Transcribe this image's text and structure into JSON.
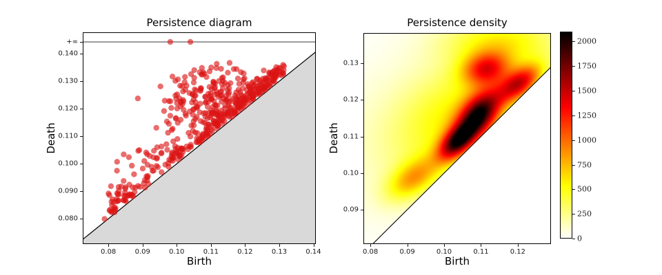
{
  "figure": {
    "background": "#ffffff"
  },
  "chart_data": [
    {
      "id": "persistence-diagram",
      "type": "scatter",
      "title": "Persistence diagram",
      "xlabel": "Birth",
      "ylabel": "Death",
      "xlim": [
        0.0725,
        0.1407
      ],
      "ylim": [
        0.0708,
        0.1478
      ],
      "x_ticks": [
        {
          "label": "0.08",
          "value": 0.08
        },
        {
          "label": "0.09",
          "value": 0.09
        },
        {
          "label": "0.10",
          "value": 0.1
        },
        {
          "label": "0.11",
          "value": 0.11
        },
        {
          "label": "0.12",
          "value": 0.12
        },
        {
          "label": "0.13",
          "value": 0.13
        },
        {
          "label": "0.14",
          "value": 0.14
        }
      ],
      "y_ticks": [
        {
          "label": "0.140",
          "value": 0.14
        },
        {
          "label": "0.130",
          "value": 0.13
        },
        {
          "label": "0.120",
          "value": 0.12
        },
        {
          "label": "0.110",
          "value": 0.11
        },
        {
          "label": "0.100",
          "value": 0.1
        },
        {
          "label": "0.090",
          "value": 0.09
        },
        {
          "label": "0.080",
          "value": 0.08
        }
      ],
      "infinity": {
        "label": "+∞",
        "value": 0.1443,
        "line_color": "#3a3a3a",
        "points_birth": [
          0.0981,
          0.104
        ]
      },
      "diagonal": {
        "line_color": "#000000",
        "fill_below_color": "#d9d9d9"
      },
      "point_style": {
        "color": "#dc1414",
        "alpha": 0.62,
        "radius": 4.2
      },
      "point_count_approx": 530,
      "seed": 42,
      "clusters": [
        {
          "kind": "band",
          "n": 230,
          "birth_lo": 0.0955,
          "birth_hi": 0.1315,
          "skew": 0.62,
          "gap_min": 0.0008,
          "gap_sigma": 0.0035
        },
        {
          "kind": "gauss",
          "n": 190,
          "cx": 0.1105,
          "cy": 0.1235,
          "sx": 0.0075,
          "sy": 0.0058,
          "min_gap": 0.0008,
          "death_max": 0.1375,
          "birth_max": 0.1315
        },
        {
          "kind": "uniform_gap",
          "n": 85,
          "birth_lo": 0.0785,
          "birth_hi": 0.102,
          "gap_min": 0.001,
          "gap_sigma": 0.008,
          "death_max": 0.128
        },
        {
          "kind": "uniform_gap",
          "n": 25,
          "birth_lo": 0.0785,
          "birth_hi": 0.092,
          "gap_min": 0.0005,
          "gap_sigma": 0.0018,
          "death_max": 0.12
        }
      ]
    },
    {
      "id": "persistence-density",
      "type": "heatmap",
      "title": "Persistence density",
      "xlabel": "Birth",
      "ylabel": "Death",
      "xlim": [
        0.0781,
        0.129
      ],
      "ylim": [
        0.0806,
        0.1383
      ],
      "x_ticks": [
        {
          "label": "0.08",
          "value": 0.08
        },
        {
          "label": "0.09",
          "value": 0.09
        },
        {
          "label": "0.10",
          "value": 0.1
        },
        {
          "label": "0.11",
          "value": 0.11
        },
        {
          "label": "0.12",
          "value": 0.12
        }
      ],
      "y_ticks": [
        {
          "label": "0.13",
          "value": 0.13
        },
        {
          "label": "0.12",
          "value": 0.12
        },
        {
          "label": "0.11",
          "value": 0.11
        },
        {
          "label": "0.10",
          "value": 0.1
        },
        {
          "label": "0.09",
          "value": 0.09
        }
      ],
      "colormap": "hot_r",
      "vmin": 0,
      "vmax": 2100,
      "diagonal": {
        "line_color": "#000000"
      },
      "density_gaussians": [
        {
          "cx": 0.1035,
          "cy": 0.1085,
          "sx": 0.0035,
          "sy": 0.0035,
          "rho": 0.55,
          "amp": 1500
        },
        {
          "cx": 0.1095,
          "cy": 0.116,
          "sx": 0.004,
          "sy": 0.0045,
          "rho": 0.45,
          "amp": 1600
        },
        {
          "cx": 0.1115,
          "cy": 0.1285,
          "sx": 0.0045,
          "sy": 0.0032,
          "rho": 0.15,
          "amp": 1050
        },
        {
          "cx": 0.1205,
          "cy": 0.1245,
          "sx": 0.0042,
          "sy": 0.0036,
          "rho": 0.55,
          "amp": 1250
        },
        {
          "cx": 0.0915,
          "cy": 0.0985,
          "sx": 0.0048,
          "sy": 0.004,
          "rho": 0.5,
          "amp": 680
        },
        {
          "cx": 0.104,
          "cy": 0.1155,
          "sx": 0.012,
          "sy": 0.0105,
          "rho": 0.35,
          "amp": 430
        },
        {
          "cx": 0.097,
          "cy": 0.112,
          "sx": 0.019,
          "sy": 0.016,
          "rho": 0.25,
          "amp": 150
        },
        {
          "cx": 0.116,
          "cy": 0.136,
          "sx": 0.011,
          "sy": 0.0045,
          "rho": 0.0,
          "amp": 480
        }
      ],
      "colorbar": {
        "ticks": [
          {
            "label": "2000",
            "value": 2000
          },
          {
            "label": "1750",
            "value": 1750
          },
          {
            "label": "1500",
            "value": 1500
          },
          {
            "label": "1250",
            "value": 1250
          },
          {
            "label": "1000",
            "value": 1000
          },
          {
            "label": "750",
            "value": 750
          },
          {
            "label": "500",
            "value": 500
          },
          {
            "label": "250",
            "value": 250
          },
          {
            "label": "0",
            "value": 0
          }
        ]
      }
    }
  ]
}
